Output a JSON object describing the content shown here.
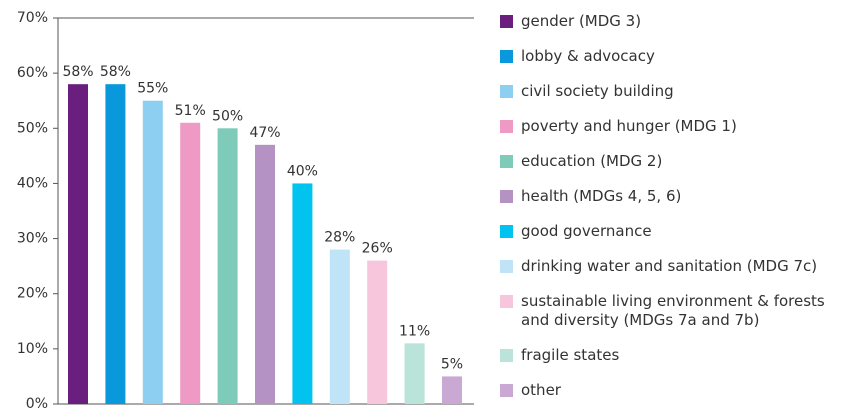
{
  "chart_data": {
    "type": "bar",
    "categories": [
      "gender (MDG 3)",
      "lobby & advocacy",
      "civil society building",
      "poverty and hunger (MDG 1)",
      "education (MDG 2)",
      "health (MDGs 4, 5, 6)",
      "good governance",
      "drinking water and sanitation (MDG 7c)",
      "sustainable living environment & forests and diversity (MDGs 7a and 7b)",
      "fragile states",
      "other"
    ],
    "values": [
      58,
      58,
      55,
      51,
      50,
      47,
      40,
      28,
      26,
      11,
      5
    ],
    "value_labels": [
      "58%",
      "58%",
      "55%",
      "51%",
      "50%",
      "47%",
      "40%",
      "28%",
      "26%",
      "11%",
      "5%"
    ],
    "colors": [
      "#6a1f7f",
      "#0a98dc",
      "#8dcff0",
      "#ef9ac4",
      "#7ecbb9",
      "#b493c4",
      "#00c4ef",
      "#bfe3f7",
      "#f8c6dc",
      "#bae3d9",
      "#c9a9d4"
    ],
    "ylim": [
      0,
      70
    ],
    "yticks": [
      {
        "value": 0,
        "label": "0%"
      },
      {
        "value": 10,
        "label": "10%"
      },
      {
        "value": 20,
        "label": "20%"
      },
      {
        "value": 30,
        "label": "30%"
      },
      {
        "value": 40,
        "label": "40%"
      },
      {
        "value": 50,
        "label": "50%"
      },
      {
        "value": 60,
        "label": "60%"
      },
      {
        "value": 70,
        "label": "70%"
      }
    ],
    "legend": "right"
  }
}
